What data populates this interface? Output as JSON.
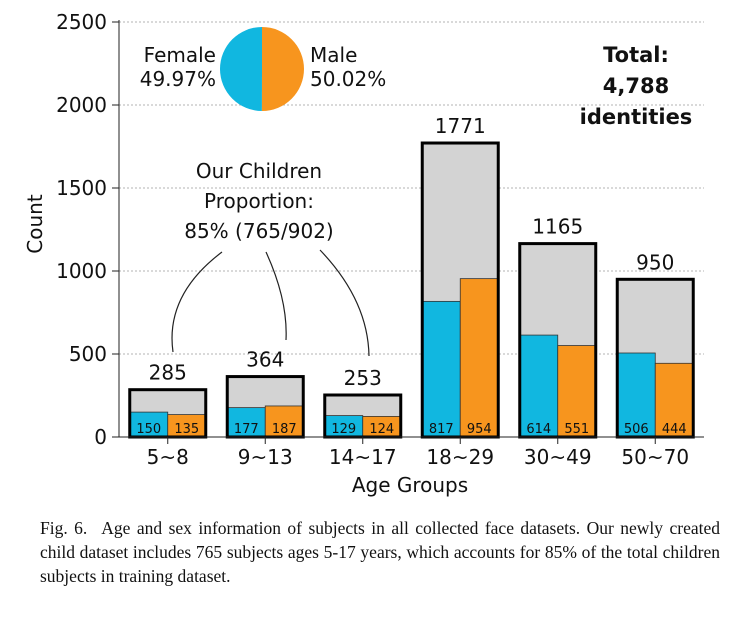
{
  "chart_data": {
    "type": "bar",
    "xlabel": "Age Groups",
    "ylabel": "Count",
    "ylim": [
      0,
      2500
    ],
    "yticks": [
      0,
      500,
      1000,
      1500,
      2000,
      2500
    ],
    "grid": "horizontal dotted",
    "categories": [
      "5~8",
      "9~13",
      "14~17",
      "18~29",
      "30~49",
      "50~70"
    ],
    "totals": [
      285,
      364,
      253,
      1771,
      1165,
      950
    ],
    "series": [
      {
        "name": "Female",
        "color": "#11b7e0",
        "values": [
          150,
          177,
          129,
          817,
          614,
          506
        ]
      },
      {
        "name": "Male",
        "color": "#f7951e",
        "values": [
          135,
          187,
          124,
          954,
          551,
          444
        ]
      }
    ],
    "total_bar_color": "#d3d3d3",
    "pie": {
      "female_label": "Female",
      "female_pct": "49.97%",
      "male_label": "Male",
      "male_pct": "50.02%",
      "female_fraction": 0.4997
    },
    "total_note": {
      "line1": "Total:",
      "line2": "4,788",
      "line3": "identities"
    },
    "children_note": {
      "line1": "Our Children",
      "line2": "Proportion:",
      "line3": "85% (765/902)"
    }
  },
  "caption": {
    "label": "Fig. 6.",
    "text": "Age and sex information of subjects in all collected face datasets. Our newly created child dataset includes 765 subjects ages 5-17 years, which accounts for 85% of the total children subjects in training dataset."
  }
}
